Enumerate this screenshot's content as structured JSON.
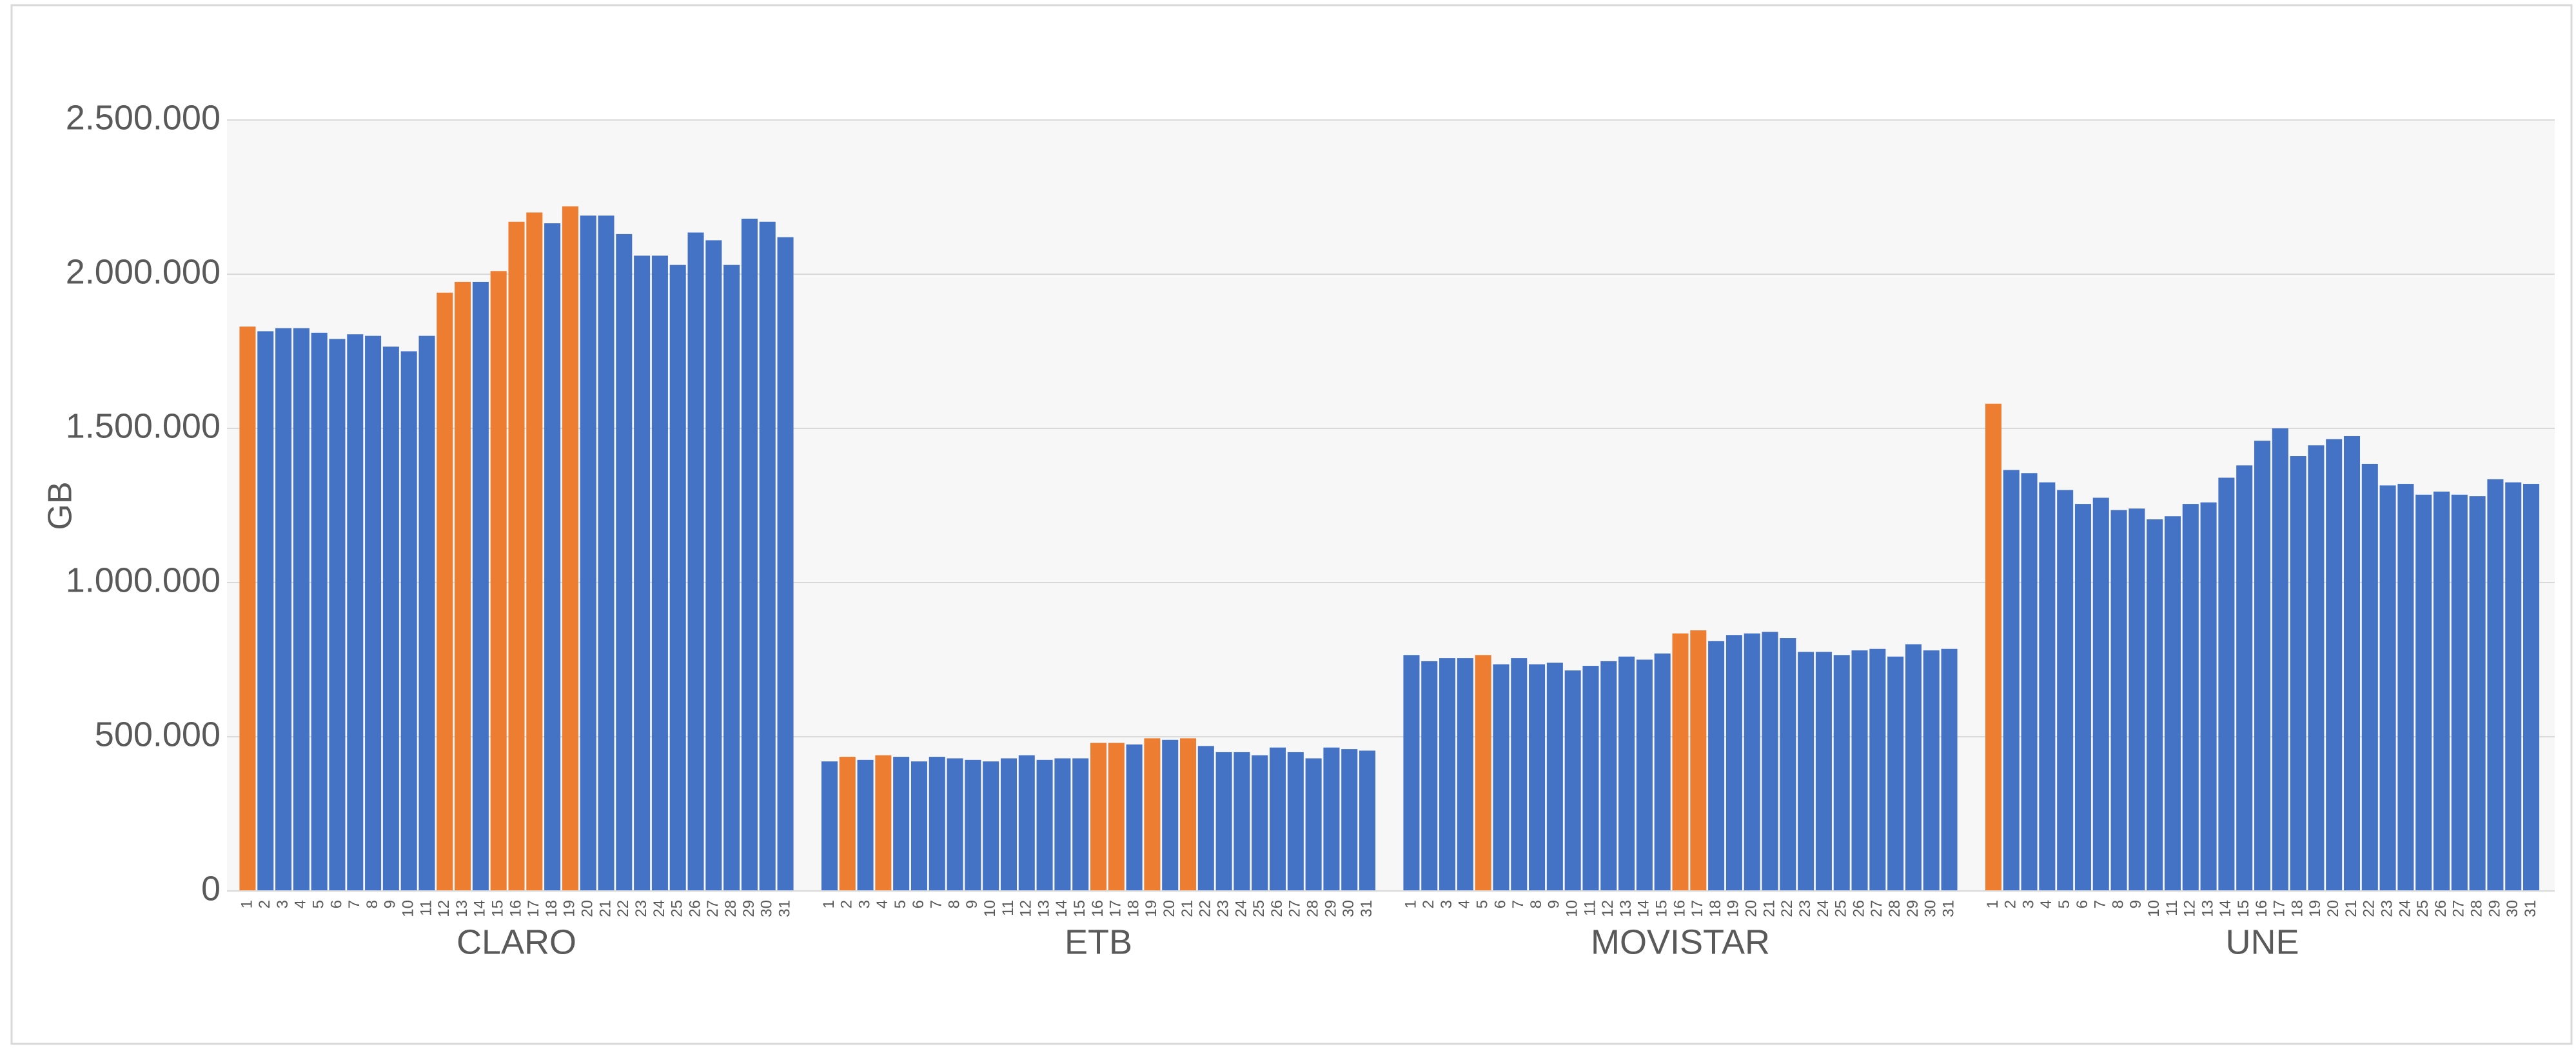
{
  "chart_data": {
    "type": "grouped-bar",
    "y_label": "GB",
    "ylim": [
      0,
      2500000
    ],
    "yticks": [
      0,
      {
        "value": 500000,
        "label": "500.000"
      },
      {
        "value": 1000000,
        "label": "1.000.000"
      },
      {
        "value": 1500000,
        "label": "1.500.000"
      },
      {
        "value": 2000000,
        "label": "2.000.000"
      },
      {
        "value": 2500000,
        "label": "2.500.000"
      }
    ],
    "grid": true,
    "groups": [
      {
        "name": "CLARO",
        "categories": [
          "1",
          "2",
          "3",
          "4",
          "5",
          "6",
          "7",
          "8",
          "9",
          "10",
          "11",
          "12",
          "13",
          "14",
          "15",
          "16",
          "17",
          "18",
          "19",
          "20",
          "21",
          "22",
          "23",
          "24",
          "25",
          "26",
          "27",
          "28",
          "29",
          "30",
          "31"
        ],
        "values": [
          1830000,
          1815000,
          1825000,
          1825000,
          1810000,
          1790000,
          1805000,
          1800000,
          1765000,
          1750000,
          1800000,
          1940000,
          1975000,
          1975000,
          2010000,
          2170000,
          2200000,
          2165000,
          2220000,
          2190000,
          2190000,
          2130000,
          2060000,
          2060000,
          2030000,
          2135000,
          2110000,
          2030000,
          2180000,
          2170000,
          2120000
        ],
        "colors": [
          "#ed7d31",
          "#4472c4",
          "#4472c4",
          "#4472c4",
          "#4472c4",
          "#4472c4",
          "#4472c4",
          "#4472c4",
          "#4472c4",
          "#4472c4",
          "#4472c4",
          "#ed7d31",
          "#ed7d31",
          "#4472c4",
          "#ed7d31",
          "#ed7d31",
          "#ed7d31",
          "#4472c4",
          "#ed7d31",
          "#4472c4",
          "#4472c4",
          "#4472c4",
          "#4472c4",
          "#4472c4",
          "#4472c4",
          "#4472c4",
          "#4472c4",
          "#4472c4",
          "#4472c4",
          "#4472c4",
          "#4472c4"
        ]
      },
      {
        "name": "ETB",
        "categories": [
          "1",
          "2",
          "3",
          "4",
          "5",
          "6",
          "7",
          "8",
          "9",
          "10",
          "11",
          "12",
          "13",
          "14",
          "15",
          "16",
          "17",
          "18",
          "19",
          "20",
          "21",
          "22",
          "23",
          "24",
          "25",
          "26",
          "27",
          "28",
          "29",
          "30",
          "31"
        ],
        "values": [
          420000,
          435000,
          425000,
          440000,
          435000,
          420000,
          435000,
          430000,
          425000,
          420000,
          430000,
          440000,
          425000,
          430000,
          430000,
          480000,
          480000,
          475000,
          495000,
          490000,
          495000,
          470000,
          450000,
          450000,
          440000,
          465000,
          450000,
          430000,
          465000,
          460000,
          455000
        ],
        "colors": [
          "#4472c4",
          "#ed7d31",
          "#4472c4",
          "#ed7d31",
          "#4472c4",
          "#4472c4",
          "#4472c4",
          "#4472c4",
          "#4472c4",
          "#4472c4",
          "#4472c4",
          "#4472c4",
          "#4472c4",
          "#4472c4",
          "#4472c4",
          "#ed7d31",
          "#ed7d31",
          "#4472c4",
          "#ed7d31",
          "#4472c4",
          "#ed7d31",
          "#4472c4",
          "#4472c4",
          "#4472c4",
          "#4472c4",
          "#4472c4",
          "#4472c4",
          "#4472c4",
          "#4472c4",
          "#4472c4",
          "#4472c4"
        ]
      },
      {
        "name": "MOVISTAR",
        "categories": [
          "1",
          "2",
          "3",
          "4",
          "5",
          "6",
          "7",
          "8",
          "9",
          "10",
          "11",
          "12",
          "13",
          "14",
          "15",
          "16",
          "17",
          "18",
          "19",
          "20",
          "21",
          "22",
          "23",
          "24",
          "25",
          "26",
          "27",
          "28",
          "29",
          "30",
          "31"
        ],
        "values": [
          765000,
          745000,
          755000,
          755000,
          765000,
          735000,
          755000,
          735000,
          740000,
          715000,
          730000,
          745000,
          760000,
          750000,
          770000,
          835000,
          845000,
          810000,
          830000,
          835000,
          840000,
          820000,
          775000,
          775000,
          765000,
          780000,
          785000,
          760000,
          800000,
          780000,
          785000
        ],
        "colors": [
          "#4472c4",
          "#4472c4",
          "#4472c4",
          "#4472c4",
          "#ed7d31",
          "#4472c4",
          "#4472c4",
          "#4472c4",
          "#4472c4",
          "#4472c4",
          "#4472c4",
          "#4472c4",
          "#4472c4",
          "#4472c4",
          "#4472c4",
          "#ed7d31",
          "#ed7d31",
          "#4472c4",
          "#4472c4",
          "#4472c4",
          "#4472c4",
          "#4472c4",
          "#4472c4",
          "#4472c4",
          "#4472c4",
          "#4472c4",
          "#4472c4",
          "#4472c4",
          "#4472c4",
          "#4472c4",
          "#4472c4"
        ]
      },
      {
        "name": "UNE",
        "categories": [
          "1",
          "2",
          "3",
          "4",
          "5",
          "6",
          "7",
          "8",
          "9",
          "10",
          "11",
          "12",
          "13",
          "14",
          "15",
          "16",
          "17",
          "18",
          "19",
          "20",
          "21",
          "22",
          "23",
          "24",
          "25",
          "26",
          "27",
          "28",
          "29",
          "30",
          "31"
        ],
        "values": [
          1580000,
          1365000,
          1355000,
          1325000,
          1300000,
          1255000,
          1275000,
          1235000,
          1240000,
          1205000,
          1215000,
          1255000,
          1260000,
          1340000,
          1380000,
          1460000,
          1500000,
          1410000,
          1445000,
          1465000,
          1475000,
          1385000,
          1315000,
          1320000,
          1285000,
          1295000,
          1285000,
          1280000,
          1335000,
          1325000,
          1320000
        ],
        "colors": [
          "#ed7d31",
          "#4472c4",
          "#4472c4",
          "#4472c4",
          "#4472c4",
          "#4472c4",
          "#4472c4",
          "#4472c4",
          "#4472c4",
          "#4472c4",
          "#4472c4",
          "#4472c4",
          "#4472c4",
          "#4472c4",
          "#4472c4",
          "#4472c4",
          "#4472c4",
          "#4472c4",
          "#4472c4",
          "#4472c4",
          "#4472c4",
          "#4472c4",
          "#4472c4",
          "#4472c4",
          "#4472c4",
          "#4472c4",
          "#4472c4",
          "#4472c4",
          "#4472c4",
          "#4472c4",
          "#4472c4"
        ]
      }
    ]
  }
}
